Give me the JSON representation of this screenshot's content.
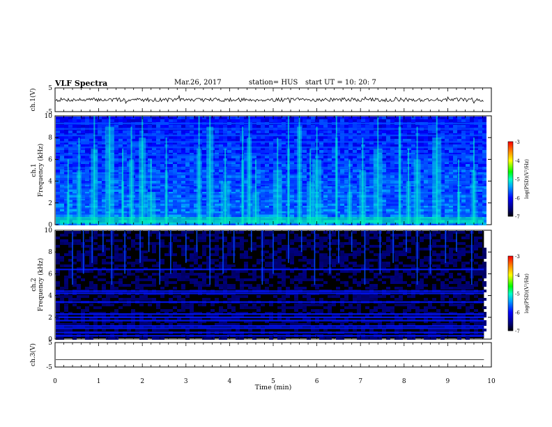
{
  "header": {
    "title": "VLF Spectra",
    "date": "Mar.26, 2017",
    "station": "station= HUS",
    "start_ut": "start UT =   10: 20: 7"
  },
  "chart_data": [
    {
      "type": "line",
      "panel": "ch1_waveform",
      "ylabel": "ch.1(V)",
      "ylim": [
        -5,
        5
      ],
      "yticks": [
        5,
        -5
      ],
      "description": "continuous noisy waveform near 0 V"
    },
    {
      "type": "heatmap",
      "panel": "ch1_spectrogram",
      "ylabel_line1": "ch.1",
      "ylabel_line2": "Frequency (kHz)",
      "ylim": [
        0,
        10
      ],
      "yticks": [
        0,
        2,
        4,
        6,
        8,
        10
      ],
      "x_range_min": [
        0,
        9.83
      ],
      "horizontal_bands_khz": [
        0.5,
        1.0,
        1.5,
        2.0,
        2.4,
        2.8,
        3.3,
        3.7,
        4.2,
        4.6,
        5.2,
        5.8,
        6.4,
        7.1,
        7.6,
        8.2,
        8.8,
        9.3
      ],
      "burst_times_min": [
        0.3,
        0.55,
        0.9,
        1.25,
        1.55,
        1.75,
        2.0,
        2.2,
        2.55,
        3.3,
        3.55,
        3.9,
        4.3,
        4.45,
        4.6,
        5.1,
        5.35,
        5.6,
        5.85,
        6.0,
        6.45,
        6.75,
        7.05,
        7.4,
        7.9,
        8.1,
        8.3,
        8.75,
        9.25,
        9.6
      ],
      "colorbar": {
        "label": "log(PSD)(V²/Hz)",
        "range": [
          -7,
          -3
        ],
        "ticks": [
          "-3",
          "-4",
          "-5",
          "-6",
          "-7"
        ]
      }
    },
    {
      "type": "heatmap",
      "panel": "ch2_spectrogram",
      "ylabel_line1": "ch.2",
      "ylabel_line2": "Frequency (kHz)",
      "ylim": [
        0,
        10
      ],
      "yticks": [
        0,
        2,
        4,
        6,
        8,
        10
      ],
      "x_range_min": [
        0,
        9.83
      ],
      "horizontal_bands_khz": [
        0.3,
        0.6,
        1.0,
        1.2,
        1.7,
        2.0,
        2.3,
        3.4,
        4.2,
        4.4,
        6.4
      ],
      "spike_times_min": [
        0.4,
        0.65,
        0.85,
        1.1,
        1.3,
        1.6,
        1.95,
        2.15,
        2.4,
        2.65,
        3.0,
        3.25,
        3.55,
        3.85,
        4.1,
        4.5,
        4.75,
        5.0,
        5.35,
        5.65,
        5.95,
        6.3,
        6.5,
        6.8,
        7.1,
        7.45,
        7.75,
        8.05,
        8.3,
        8.6,
        8.95,
        9.2,
        9.55
      ],
      "colorbar": {
        "label": "log(PSD)(V²/Hz)",
        "range": [
          -7,
          -3
        ],
        "ticks": [
          "-3",
          "-4",
          "-5",
          "-6",
          "-7"
        ]
      }
    },
    {
      "type": "line",
      "panel": "ch3_waveform",
      "ylabel": "ch.3(V)",
      "ylim": [
        -5,
        5
      ],
      "yticks": [
        5,
        -5
      ],
      "description": "flat line at about -2 V"
    }
  ],
  "xaxis": {
    "label": "Time (min)",
    "ticks": [
      "0",
      "1",
      "2",
      "3",
      "4",
      "5",
      "6",
      "7",
      "8",
      "9",
      "10"
    ],
    "xlim": [
      0,
      10
    ]
  }
}
